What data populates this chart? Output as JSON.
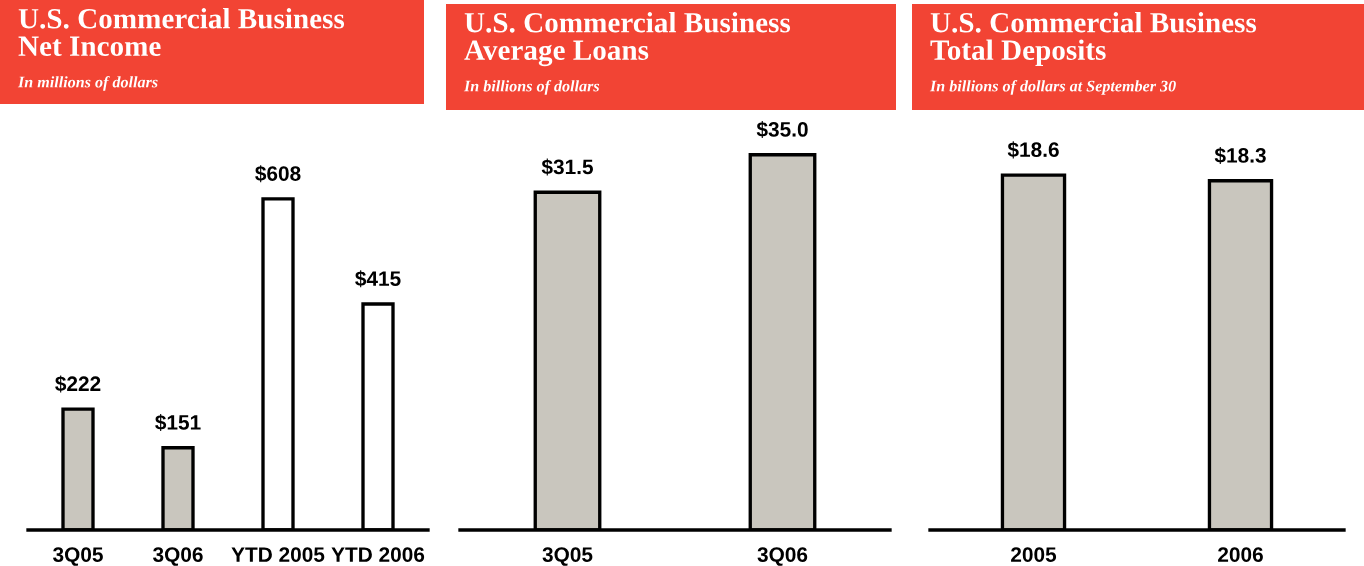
{
  "chart_data": [
    {
      "type": "bar",
      "title": "U.S. Commercial Business\nNet Income",
      "subtitle": "In millions of dollars",
      "categories": [
        "3Q05",
        "3Q06",
        "YTD 2005",
        "YTD 2006"
      ],
      "values": [
        222,
        151,
        608,
        415
      ],
      "colors": [
        "#c9c6be",
        "#c9c6be",
        "#ffffff",
        "#ffffff"
      ],
      "value_labels": [
        "$222",
        "$151",
        "$608",
        "$415"
      ],
      "grid": false,
      "legend": false
    },
    {
      "type": "bar",
      "title": "U.S. Commercial Business\nAverage Loans",
      "subtitle": "In billions of dollars",
      "categories": [
        "3Q05",
        "3Q06"
      ],
      "values": [
        31.5,
        35.0
      ],
      "colors": [
        "#c9c6be",
        "#c9c6be"
      ],
      "value_labels": [
        "$31.5",
        "$35.0"
      ],
      "grid": false,
      "legend": false
    },
    {
      "type": "bar",
      "title": "U.S. Commercial Business\nTotal Deposits",
      "subtitle": "In billions of dollars at September 30",
      "categories": [
        "2005",
        "2006"
      ],
      "values": [
        18.6,
        18.3
      ],
      "colors": [
        "#c9c6be",
        "#c9c6be"
      ],
      "value_labels": [
        "$18.6",
        "$18.3"
      ],
      "grid": false,
      "legend": false
    }
  ]
}
